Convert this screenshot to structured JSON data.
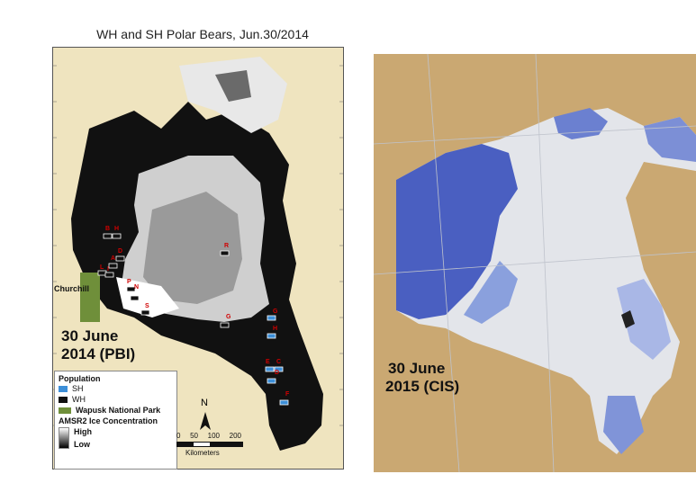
{
  "left_panel": {
    "title": "WH and SH Polar Bears, Jun.30/2014",
    "date_label_line1": "30 June",
    "date_label_line2": "2014 (PBI)",
    "place_label": "Churchill",
    "legend": {
      "title": "Population",
      "items": [
        {
          "label": "SH",
          "color": "#3d8fd8"
        },
        {
          "label": "WH",
          "color": "#111111"
        },
        {
          "label": "Wapusk National Park",
          "color": "#6f8f3a"
        }
      ],
      "ice_title": "AMSR2 Ice Concentration",
      "ice_high": "High",
      "ice_low": "Low"
    },
    "north_label": "N",
    "scale": {
      "ticks": [
        "0",
        "50",
        "100",
        "200"
      ],
      "unit": "Kilometers"
    },
    "bear_markers": [
      {
        "letter": "B",
        "pop": "WH"
      },
      {
        "letter": "H",
        "pop": "WH"
      },
      {
        "letter": "D",
        "pop": "WH"
      },
      {
        "letter": "A",
        "pop": "WH"
      },
      {
        "letter": "L",
        "pop": "WH"
      },
      {
        "letter": "I",
        "pop": "WH"
      },
      {
        "letter": "P",
        "pop": "WH"
      },
      {
        "letter": "N",
        "pop": "WH"
      },
      {
        "letter": "S",
        "pop": "WH"
      },
      {
        "letter": "R",
        "pop": "WH"
      },
      {
        "letter": "G",
        "pop": "WH"
      },
      {
        "letter": "G",
        "pop": "SH"
      },
      {
        "letter": "H",
        "pop": "SH"
      },
      {
        "letter": "E",
        "pop": "SH"
      },
      {
        "letter": "C",
        "pop": "SH"
      },
      {
        "letter": "D",
        "pop": "SH"
      },
      {
        "letter": "F",
        "pop": "SH"
      }
    ]
  },
  "right_panel": {
    "date_label_line1": "30 June",
    "date_label_line2": "2015 (CIS)"
  },
  "colors": {
    "land": "#efe4bf",
    "water_open": "#111111",
    "ice_high": "#ffffff",
    "cis_land": "#caa872",
    "cis_ice_thick": "#4a5fc1",
    "cis_ice_light": "#e3e5ea",
    "cis_water": "#f4f5f7"
  }
}
